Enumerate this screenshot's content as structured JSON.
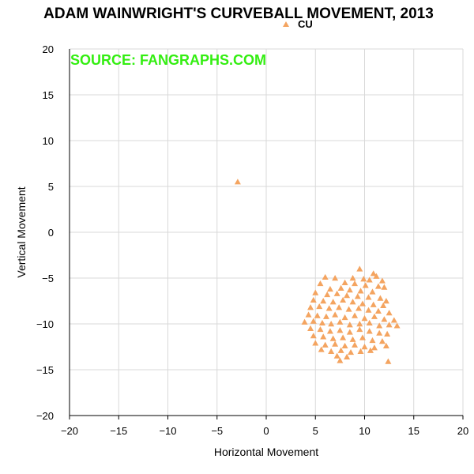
{
  "chart_data": {
    "type": "scatter",
    "title": "ADAM WAINWRIGHT'S CURVEBALL MOVEMENT, 2013",
    "watermark": "SOURCE: FANGRAPHS.COM",
    "xlabel": "Horizontal Movement",
    "ylabel": "Vertical Movement",
    "xlim": [
      -20,
      20
    ],
    "ylim": [
      -20,
      20
    ],
    "xticks": [
      -20,
      -15,
      -10,
      -5,
      0,
      5,
      10,
      15,
      20
    ],
    "yticks": [
      -20,
      -15,
      -10,
      -5,
      0,
      5,
      10,
      15,
      20
    ],
    "xtick_labels": [
      "−20",
      "−15",
      "−10",
      "−5",
      "0",
      "5",
      "10",
      "15",
      "20"
    ],
    "ytick_labels": [
      "−20",
      "−15",
      "−10",
      "−5",
      "0",
      "5",
      "10",
      "15",
      "20"
    ],
    "grid": true,
    "legend_position": "top-center",
    "series": [
      {
        "name": "CU",
        "color": "#f4a460",
        "marker": "triangle",
        "points": [
          [
            -2.9,
            5.5
          ],
          [
            9.5,
            -4.0
          ],
          [
            10.9,
            -4.5
          ],
          [
            11.2,
            -4.8
          ],
          [
            6.0,
            -4.9
          ],
          [
            7.0,
            -5.0
          ],
          [
            8.8,
            -5.0
          ],
          [
            9.9,
            -5.1
          ],
          [
            10.5,
            -5.2
          ],
          [
            11.8,
            -5.3
          ],
          [
            5.5,
            -5.6
          ],
          [
            8.0,
            -5.5
          ],
          [
            9.0,
            -5.6
          ],
          [
            10.1,
            -5.8
          ],
          [
            11.4,
            -5.9
          ],
          [
            12.0,
            -6.0
          ],
          [
            6.5,
            -6.2
          ],
          [
            7.6,
            -6.1
          ],
          [
            8.5,
            -6.3
          ],
          [
            9.6,
            -6.4
          ],
          [
            10.8,
            -6.5
          ],
          [
            5.0,
            -6.6
          ],
          [
            6.2,
            -6.8
          ],
          [
            7.2,
            -6.7
          ],
          [
            8.2,
            -6.9
          ],
          [
            9.3,
            -7.0
          ],
          [
            10.4,
            -7.1
          ],
          [
            11.6,
            -7.2
          ],
          [
            12.2,
            -7.5
          ],
          [
            4.8,
            -7.4
          ],
          [
            5.8,
            -7.5
          ],
          [
            6.8,
            -7.6
          ],
          [
            7.8,
            -7.4
          ],
          [
            8.8,
            -7.6
          ],
          [
            9.8,
            -7.8
          ],
          [
            10.9,
            -7.9
          ],
          [
            11.9,
            -8.0
          ],
          [
            4.5,
            -8.2
          ],
          [
            5.4,
            -8.1
          ],
          [
            6.4,
            -8.3
          ],
          [
            7.4,
            -8.2
          ],
          [
            8.4,
            -8.4
          ],
          [
            9.4,
            -8.3
          ],
          [
            10.4,
            -8.5
          ],
          [
            11.4,
            -8.6
          ],
          [
            12.5,
            -8.8
          ],
          [
            4.3,
            -9.0
          ],
          [
            5.2,
            -9.1
          ],
          [
            6.1,
            -9.2
          ],
          [
            7.0,
            -9.0
          ],
          [
            8.0,
            -9.3
          ],
          [
            9.0,
            -9.1
          ],
          [
            10.0,
            -9.4
          ],
          [
            11.0,
            -9.2
          ],
          [
            12.0,
            -9.5
          ],
          [
            13.0,
            -9.6
          ],
          [
            3.9,
            -9.8
          ],
          [
            4.8,
            -9.7
          ],
          [
            5.7,
            -9.9
          ],
          [
            6.6,
            -10.0
          ],
          [
            7.5,
            -9.8
          ],
          [
            8.5,
            -10.1
          ],
          [
            9.5,
            -10.0
          ],
          [
            10.5,
            -9.9
          ],
          [
            11.5,
            -10.2
          ],
          [
            12.5,
            -10.1
          ],
          [
            13.3,
            -10.2
          ],
          [
            4.5,
            -10.5
          ],
          [
            5.5,
            -10.6
          ],
          [
            6.5,
            -10.8
          ],
          [
            7.5,
            -10.7
          ],
          [
            8.5,
            -10.9
          ],
          [
            9.5,
            -10.6
          ],
          [
            10.5,
            -10.8
          ],
          [
            11.5,
            -11.0
          ],
          [
            12.3,
            -11.1
          ],
          [
            4.8,
            -11.3
          ],
          [
            5.8,
            -11.4
          ],
          [
            6.8,
            -11.6
          ],
          [
            7.8,
            -11.5
          ],
          [
            8.8,
            -11.7
          ],
          [
            9.8,
            -11.5
          ],
          [
            10.8,
            -11.8
          ],
          [
            11.8,
            -11.9
          ],
          [
            5.0,
            -12.1
          ],
          [
            6.0,
            -12.3
          ],
          [
            7.0,
            -12.2
          ],
          [
            8.0,
            -12.4
          ],
          [
            9.0,
            -12.3
          ],
          [
            10.0,
            -12.5
          ],
          [
            11.0,
            -12.6
          ],
          [
            12.2,
            -12.4
          ],
          [
            5.6,
            -12.8
          ],
          [
            6.6,
            -13.0
          ],
          [
            7.6,
            -12.9
          ],
          [
            8.6,
            -13.1
          ],
          [
            9.6,
            -13.0
          ],
          [
            10.6,
            -12.9
          ],
          [
            7.2,
            -13.5
          ],
          [
            8.2,
            -13.6
          ],
          [
            7.5,
            -14.0
          ],
          [
            12.4,
            -14.1
          ]
        ]
      }
    ]
  }
}
